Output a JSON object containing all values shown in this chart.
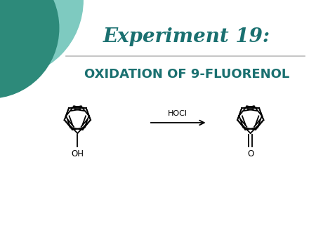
{
  "title": "Experiment 19:",
  "subtitle": "OXIDATION OF 9-FLUORENOL",
  "reagent": "HOCl",
  "title_color": "#1a7070",
  "subtitle_color": "#1a7070",
  "bg_color": "#ffffff",
  "circle1_color": "#2d8a7a",
  "circle2_color": "#7ecac0",
  "line_color": "#bbbbbb",
  "title_fontsize": 20,
  "subtitle_fontsize": 13,
  "reagent_fontsize": 8
}
